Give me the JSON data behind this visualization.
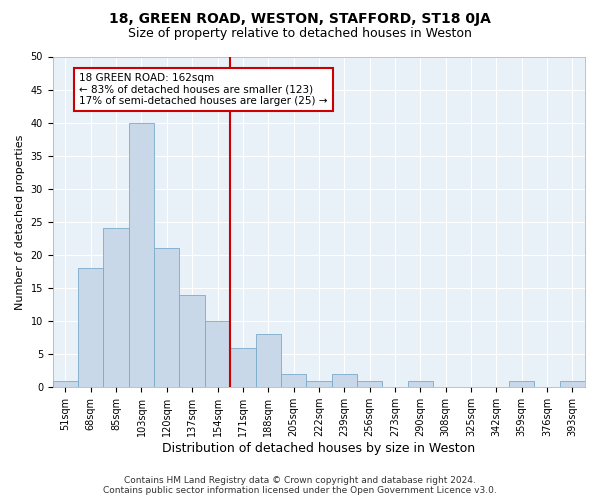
{
  "title": "18, GREEN ROAD, WESTON, STAFFORD, ST18 0JA",
  "subtitle": "Size of property relative to detached houses in Weston",
  "xlabel": "Distribution of detached houses by size in Weston",
  "ylabel": "Number of detached properties",
  "footer_line1": "Contains HM Land Registry data © Crown copyright and database right 2024.",
  "footer_line2": "Contains public sector information licensed under the Open Government Licence v3.0.",
  "bar_labels": [
    "51sqm",
    "68sqm",
    "85sqm",
    "103sqm",
    "120sqm",
    "137sqm",
    "154sqm",
    "171sqm",
    "188sqm",
    "205sqm",
    "222sqm",
    "239sqm",
    "256sqm",
    "273sqm",
    "290sqm",
    "308sqm",
    "325sqm",
    "342sqm",
    "359sqm",
    "376sqm",
    "393sqm"
  ],
  "bar_values": [
    1,
    18,
    24,
    40,
    21,
    14,
    10,
    6,
    8,
    2,
    1,
    2,
    1,
    0,
    1,
    0,
    0,
    0,
    1,
    0,
    1
  ],
  "bar_color": "#c8d8e8",
  "bar_edgecolor": "#7aaac8",
  "vline_x": 6.5,
  "vline_color": "#cc0000",
  "annotation_text": "18 GREEN ROAD: 162sqm\n← 83% of detached houses are smaller (123)\n17% of semi-detached houses are larger (25) →",
  "annotation_box_facecolor": "#ffffff",
  "annotation_box_edgecolor": "#cc0000",
  "ylim": [
    0,
    50
  ],
  "yticks": [
    0,
    5,
    10,
    15,
    20,
    25,
    30,
    35,
    40,
    45,
    50
  ],
  "figure_facecolor": "#ffffff",
  "axes_facecolor": "#e8f0f8",
  "grid_color": "#ffffff",
  "title_fontsize": 10,
  "subtitle_fontsize": 9,
  "annotation_fontsize": 7.5,
  "ylabel_fontsize": 8,
  "xlabel_fontsize": 9,
  "tick_fontsize": 7,
  "footer_fontsize": 6.5
}
